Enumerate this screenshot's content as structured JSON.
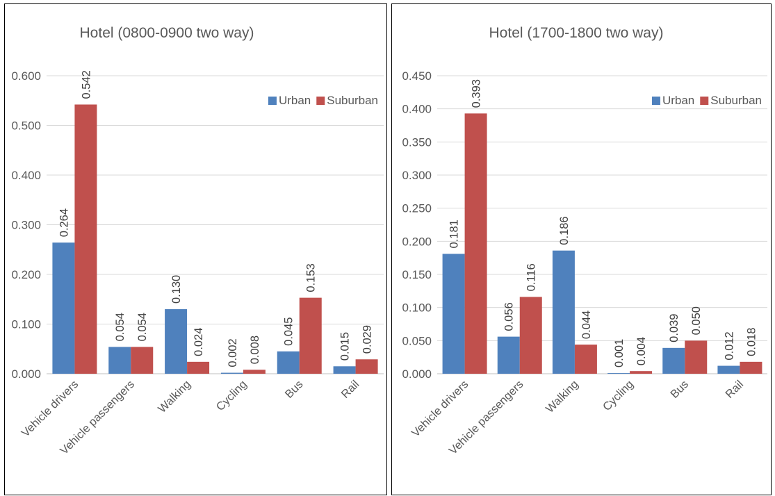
{
  "chart_data": [
    {
      "type": "bar",
      "title": "Hotel (0800-0900 two way)",
      "xlabel": "",
      "ylabel": "",
      "categories": [
        "Vehicle drivers",
        "Vehicle passengers",
        "Walking",
        "Cycling",
        "Bus",
        "Rail"
      ],
      "series": [
        {
          "name": "Urban",
          "color": "#4f81bd",
          "values": [
            0.264,
            0.054,
            0.13,
            0.002,
            0.045,
            0.015
          ],
          "labels": [
            "0.264",
            "0.054",
            "0.130",
            "0.002",
            "0.045",
            "0.015"
          ]
        },
        {
          "name": "Suburban",
          "color": "#c0504d",
          "values": [
            0.542,
            0.054,
            0.024,
            0.008,
            0.153,
            0.029
          ],
          "labels": [
            "0.542",
            "0.054",
            "0.024",
            "0.008",
            "0.153",
            "0.029"
          ]
        }
      ],
      "yticks": [
        "0.000",
        "0.100",
        "0.200",
        "0.300",
        "0.400",
        "0.500",
        "0.600"
      ],
      "ylim": [
        0,
        0.6
      ],
      "grid": true,
      "legend_position": "top-right"
    },
    {
      "type": "bar",
      "title": "Hotel (1700-1800 two way)",
      "xlabel": "",
      "ylabel": "",
      "categories": [
        "Vehicle drivers",
        "Vehicle passengers",
        "Walking",
        "Cycling",
        "Bus",
        "Rail"
      ],
      "series": [
        {
          "name": "Urban",
          "color": "#4f81bd",
          "values": [
            0.181,
            0.056,
            0.186,
            0.001,
            0.039,
            0.012
          ],
          "labels": [
            "0.181",
            "0.056",
            "0.186",
            "0.001",
            "0.039",
            "0.012"
          ]
        },
        {
          "name": "Suburban",
          "color": "#c0504d",
          "values": [
            0.393,
            0.116,
            0.044,
            0.004,
            0.05,
            0.018
          ],
          "labels": [
            "0.393",
            "0.116",
            "0.044",
            "0.004",
            "0.050",
            "0.018"
          ]
        }
      ],
      "yticks": [
        "0.000",
        "0.050",
        "0.100",
        "0.150",
        "0.200",
        "0.250",
        "0.300",
        "0.350",
        "0.400",
        "0.450"
      ],
      "ylim": [
        0,
        0.45
      ],
      "grid": true,
      "legend_position": "top-right"
    }
  ]
}
